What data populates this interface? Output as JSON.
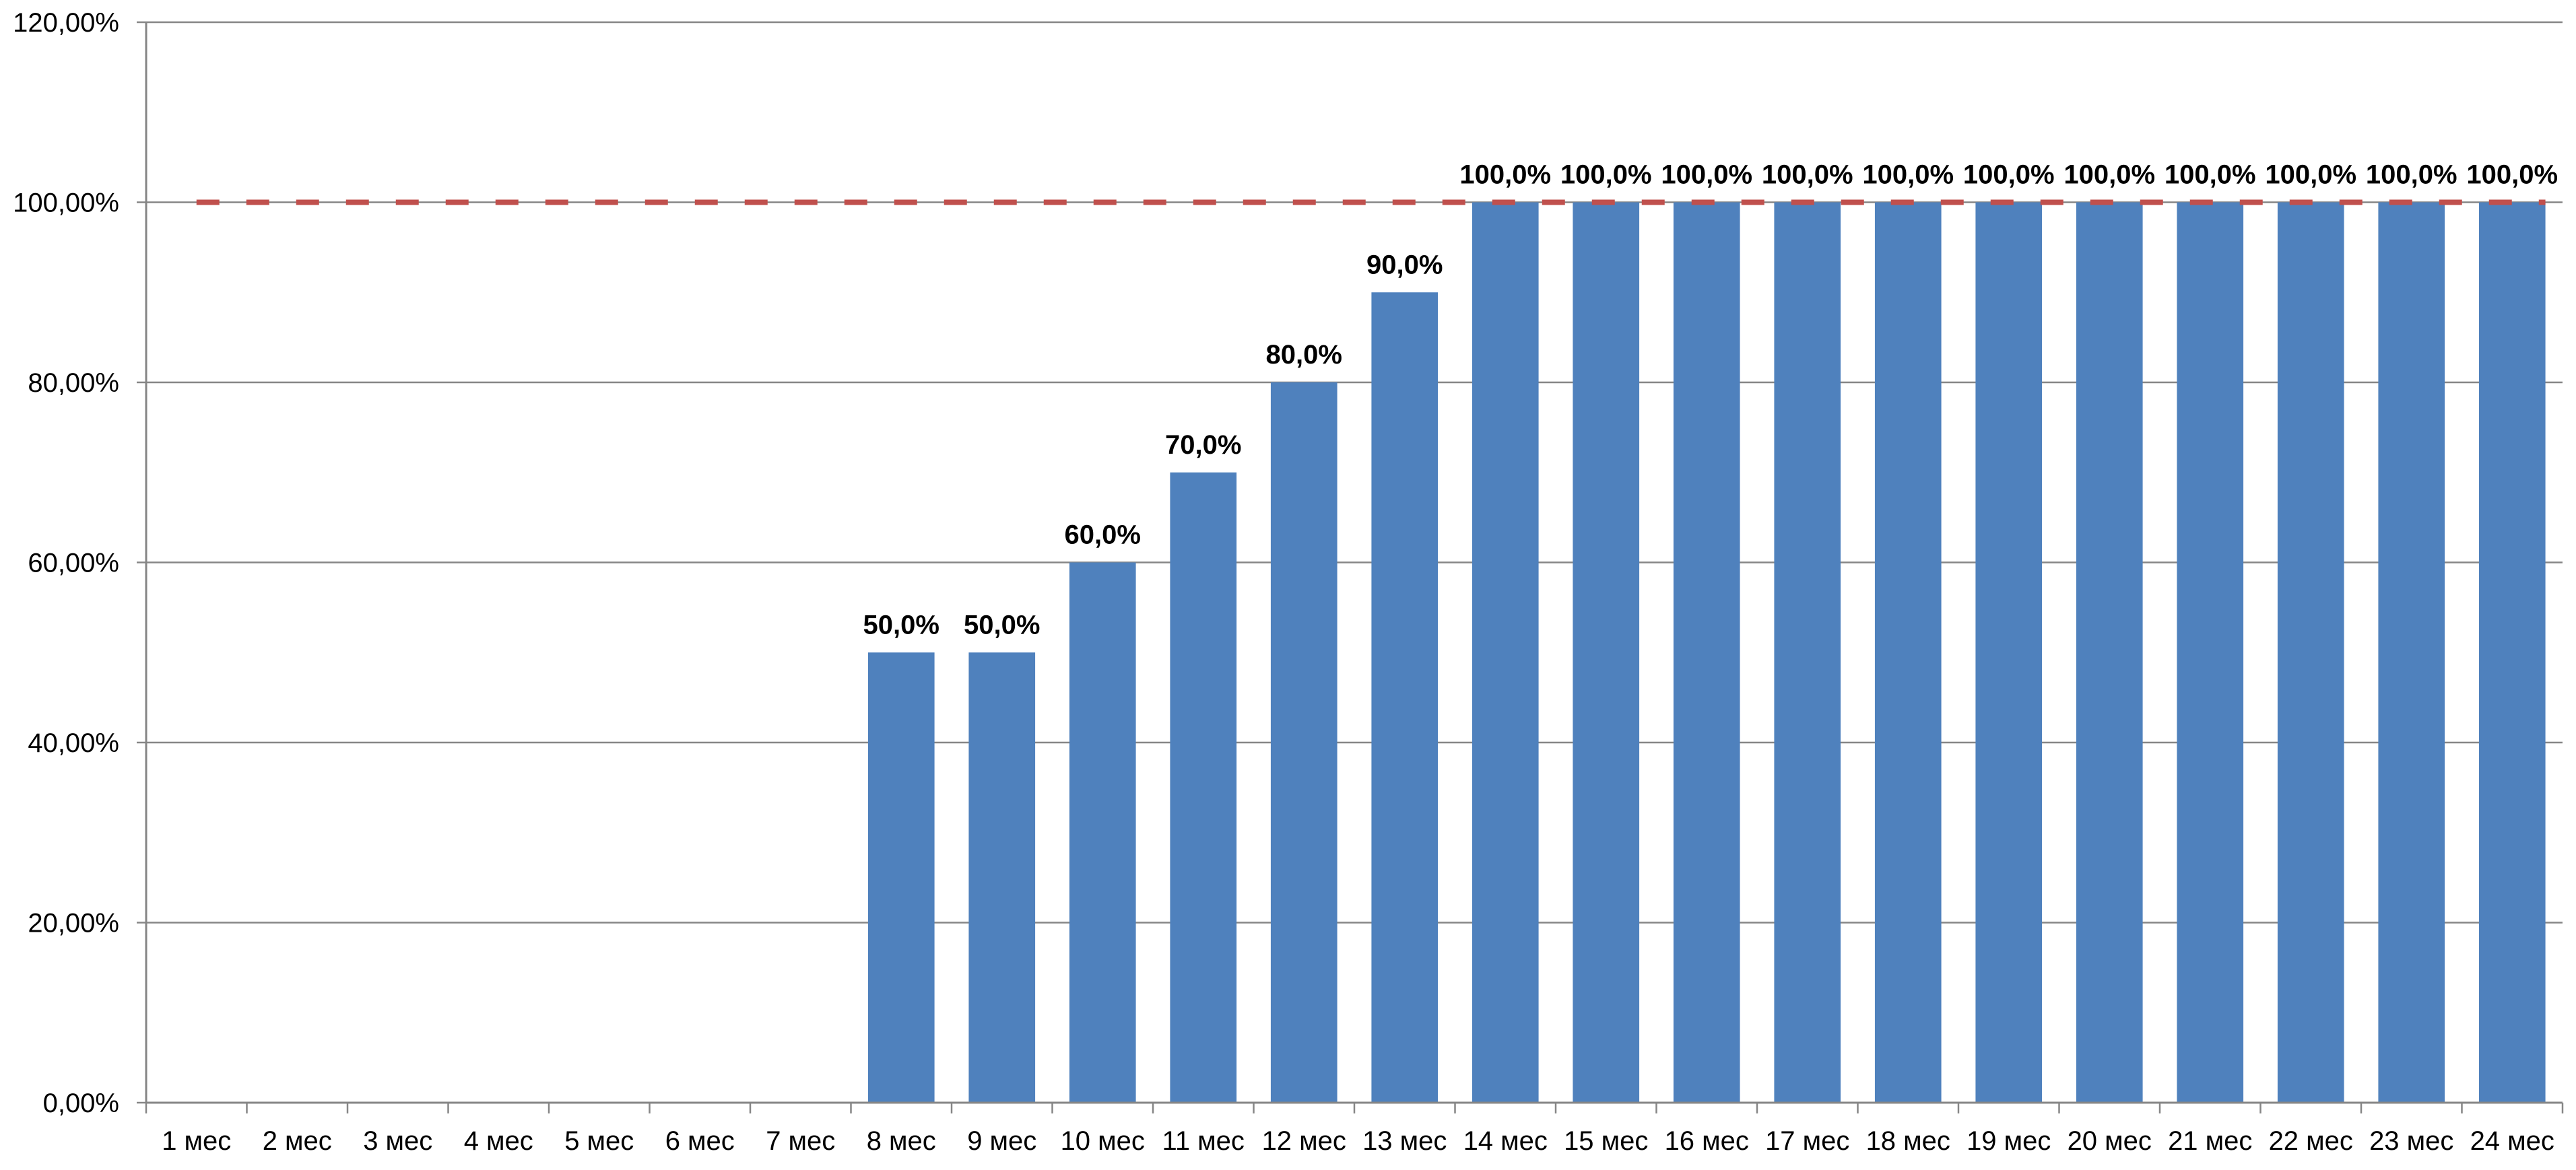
{
  "chart_data": {
    "type": "bar",
    "title": "",
    "xlabel": "",
    "ylabel": "",
    "ylim": [
      0,
      120
    ],
    "y_ticks": [
      0,
      20,
      40,
      60,
      80,
      100,
      120
    ],
    "y_tick_labels": [
      "0,00%",
      "20,00%",
      "40,00%",
      "60,00%",
      "80,00%",
      "100,00%",
      "120,00%"
    ],
    "grid": true,
    "legend": "none",
    "categories": [
      "1 мес",
      "2 мес",
      "3 мес",
      "4 мес",
      "5 мес",
      "6 мес",
      "7 мес",
      "8 мес",
      "9 мес",
      "10 мес",
      "11 мес",
      "12 мес",
      "13 мес",
      "14 мес",
      "15 мес",
      "16 мес",
      "17 мес",
      "18 мес",
      "19 мес",
      "20 мес",
      "21 мес",
      "22 мес",
      "23 мес",
      "24 мес"
    ],
    "values": [
      0,
      0,
      0,
      0,
      0,
      0,
      0,
      50,
      50,
      60,
      70,
      80,
      90,
      100,
      100,
      100,
      100,
      100,
      100,
      100,
      100,
      100,
      100,
      100
    ],
    "data_labels": [
      "",
      "",
      "",
      "",
      "",
      "",
      "",
      "50,0%",
      "50,0%",
      "60,0%",
      "70,0%",
      "80,0%",
      "90,0%",
      "100,0%",
      "100,0%",
      "100,0%",
      "100,0%",
      "100,0%",
      "100,0%",
      "100,0%",
      "100,0%",
      "100,0%",
      "100,0%",
      "100,0%"
    ],
    "reference_line": {
      "value": 100,
      "style": "dashed"
    },
    "colors": {
      "bar": "#4f81bd",
      "reference_line": "#c0504d",
      "grid": "#868686",
      "axis": "#868686"
    }
  }
}
